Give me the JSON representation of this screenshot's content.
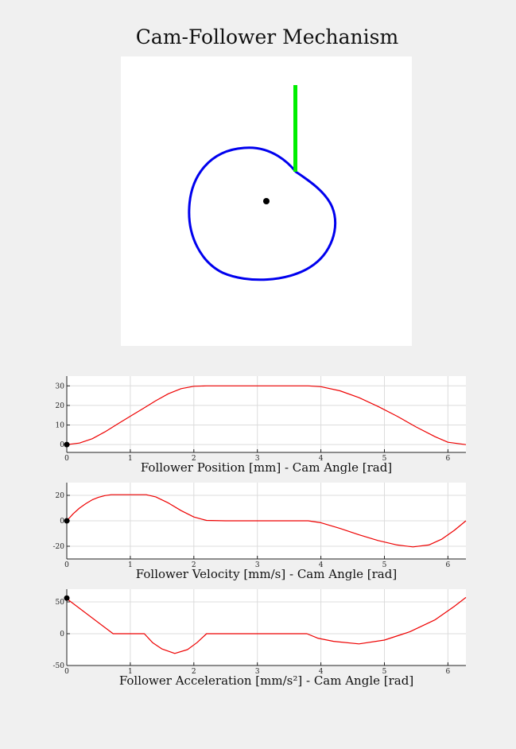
{
  "title": "Cam-Follower Mechanism",
  "colors": {
    "cam": "#0000ee",
    "follower": "#00ee00",
    "curve": "#ee0000",
    "marker": "#000000"
  },
  "cam_figure": {
    "type": "diagram",
    "parts": [
      "cam-profile",
      "follower-rod",
      "cam-center"
    ]
  },
  "chart_data": [
    {
      "type": "line",
      "name": "position",
      "xlabel": "Follower Position [mm] - Cam Angle [rad]",
      "xlim": [
        0,
        6.283
      ],
      "ylim": [
        -4,
        35
      ],
      "xticks": [
        0,
        1,
        2,
        3,
        4,
        5,
        6
      ],
      "yticks": [
        0,
        10,
        20,
        30
      ],
      "grid": true,
      "x": [
        0,
        0.2,
        0.4,
        0.6,
        0.8,
        1.0,
        1.2,
        1.4,
        1.6,
        1.8,
        2.0,
        2.2,
        2.5,
        3.0,
        3.5,
        3.8,
        4.0,
        4.3,
        4.6,
        4.9,
        5.2,
        5.5,
        5.8,
        6.0,
        6.283
      ],
      "y": [
        0,
        0.8,
        3.0,
        6.5,
        10.5,
        14.5,
        18.4,
        22.4,
        26.0,
        28.6,
        29.8,
        30,
        30,
        30,
        30,
        30,
        29.6,
        27.5,
        24.0,
        19.5,
        14.5,
        9.0,
        4.0,
        1.2,
        0
      ],
      "marker": [
        0,
        0
      ]
    },
    {
      "type": "line",
      "name": "velocity",
      "xlabel": "Follower Velocity [mm/s] - Cam Angle [rad]",
      "xlim": [
        0,
        6.283
      ],
      "ylim": [
        -30,
        30
      ],
      "xticks": [
        0,
        1,
        2,
        3,
        4,
        5,
        6
      ],
      "yticks": [
        -20,
        0,
        20
      ],
      "grid": true,
      "x": [
        0,
        0.1,
        0.2,
        0.3,
        0.4,
        0.5,
        0.6,
        0.7,
        1.0,
        1.25,
        1.4,
        1.6,
        1.8,
        2.0,
        2.2,
        2.5,
        3.0,
        3.5,
        3.8,
        4.0,
        4.3,
        4.6,
        4.9,
        5.2,
        5.45,
        5.7,
        5.9,
        6.1,
        6.283
      ],
      "y": [
        0,
        5.5,
        10,
        13.5,
        16.5,
        18.5,
        19.8,
        20.5,
        20.5,
        20.5,
        18.8,
        14,
        8,
        3,
        0.3,
        0,
        0,
        0,
        0,
        -1.5,
        -6,
        -11,
        -15.5,
        -19,
        -20.5,
        -19,
        -14.5,
        -7.5,
        0
      ],
      "marker": [
        0,
        0
      ]
    },
    {
      "type": "line",
      "name": "acceleration",
      "xlabel": "Follower Acceleration [mm/s²] - Cam Angle [rad]",
      "xlim": [
        0,
        6.283
      ],
      "ylim": [
        -50,
        70
      ],
      "xticks": [
        0,
        1,
        2,
        3,
        4,
        5,
        6
      ],
      "yticks": [
        -50,
        0,
        50
      ],
      "grid": true,
      "x": [
        0,
        0.73,
        1.22,
        1.35,
        1.5,
        1.7,
        1.9,
        2.05,
        2.2,
        2.5,
        3.0,
        3.5,
        3.78,
        3.95,
        4.2,
        4.6,
        5.0,
        5.4,
        5.8,
        6.1,
        6.283
      ],
      "y": [
        55,
        0,
        0,
        -14,
        -24,
        -31,
        -25,
        -14,
        0,
        0,
        0,
        0,
        0,
        -7,
        -12,
        -16,
        -10,
        3,
        22,
        43,
        57
      ],
      "marker": [
        0,
        56
      ]
    }
  ]
}
